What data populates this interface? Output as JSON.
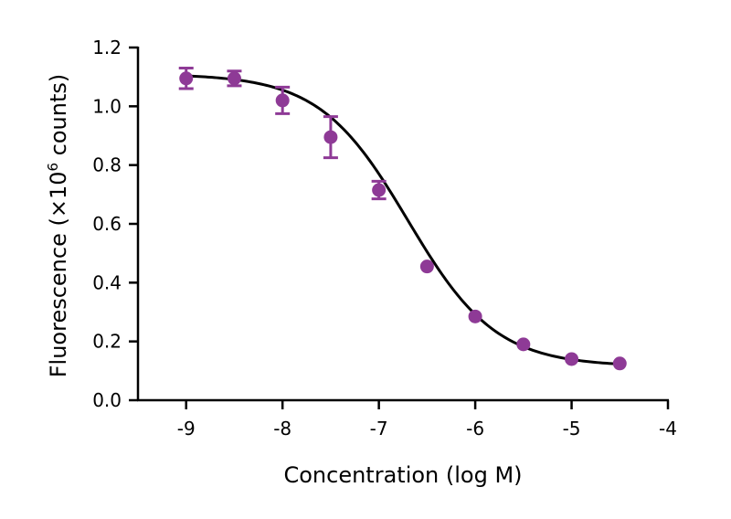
{
  "chart_data": {
    "type": "scatter",
    "xlabel": "Concentration (log M)",
    "ylabel": {
      "prefix": "Fluorescence (×10",
      "superscript": "6",
      "suffix": " counts)"
    },
    "xlim": [
      -9.5,
      -4
    ],
    "ylim": [
      0,
      1.2
    ],
    "x_ticks": [
      -9,
      -8,
      -7,
      -6,
      -5,
      -4
    ],
    "x_tick_labels": [
      "-9",
      "-8",
      "-7",
      "-6",
      "-5",
      "-4"
    ],
    "y_ticks": [
      0,
      0.2,
      0.4,
      0.6,
      0.8,
      1.0,
      1.2
    ],
    "y_tick_labels": [
      "0.0",
      "0.2",
      "0.4",
      "0.6",
      "0.8",
      "1.0",
      "1.2"
    ],
    "grid": false,
    "series": [
      {
        "color": "#8e3a96",
        "marker": "circle",
        "x": [
          -9,
          -8.5,
          -8,
          -7.5,
          -7,
          -6.5,
          -6,
          -5.5,
          -5,
          -4.5
        ],
        "y": [
          1.095,
          1.095,
          1.02,
          0.895,
          0.715,
          0.455,
          0.285,
          0.19,
          0.14,
          0.125
        ],
        "error": [
          0.035,
          0.025,
          0.045,
          0.07,
          0.03,
          0,
          0,
          0,
          0,
          0
        ]
      }
    ],
    "fit": {
      "type": "sigmoidal dose-response",
      "color": "#000000",
      "top": 1.11,
      "bottom": 0.115,
      "log_ec50": -6.7,
      "hill_slope": -0.95
    }
  }
}
